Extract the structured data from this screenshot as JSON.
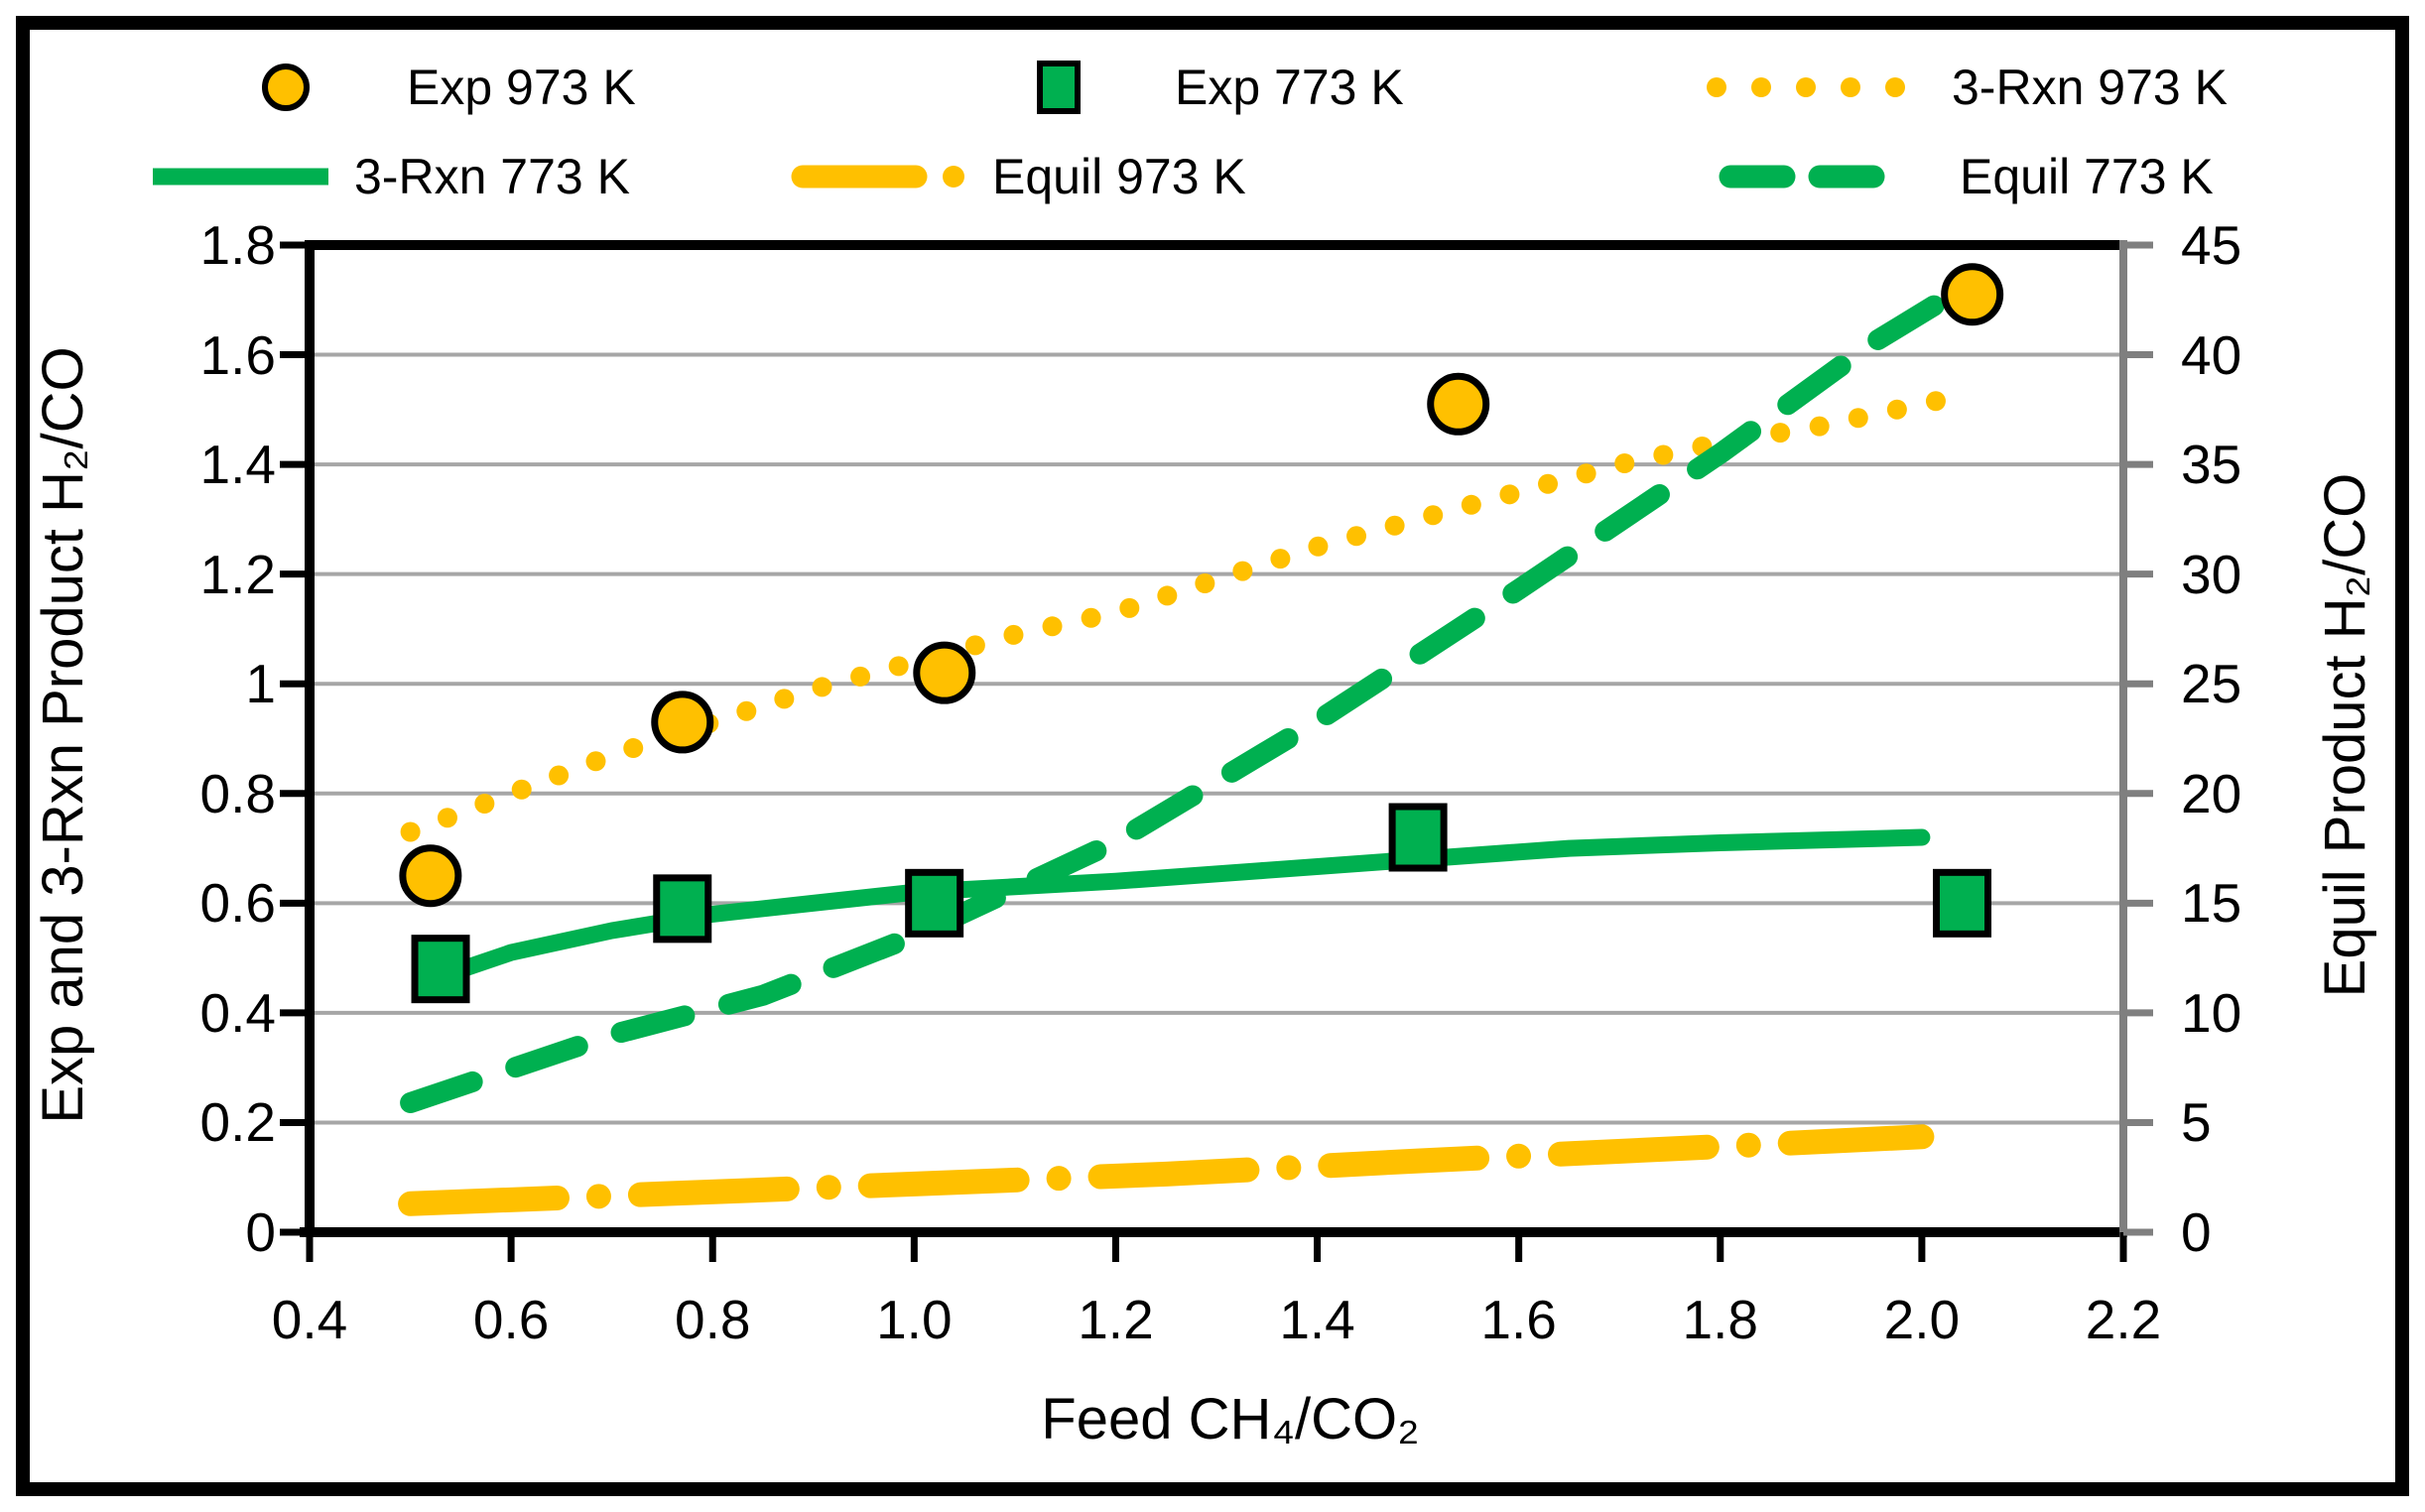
{
  "figure": {
    "background": "#FFFFFF",
    "border_color": "#000000"
  },
  "colors": {
    "gold": "#FFC000",
    "green": "#00B050",
    "gridline": "#A6A6A6",
    "right_axis_line": "#7F7F7F",
    "axis_line": "#000000",
    "text": "#000000"
  },
  "legend": {
    "items": [
      {
        "label": "Exp 973 K",
        "marker": "circle",
        "color": "#FFC000"
      },
      {
        "label": "Exp 773 K",
        "marker": "square",
        "color": "#00B050"
      },
      {
        "label": "3-Rxn 973 K",
        "marker": "dots",
        "color": "#FFC000"
      },
      {
        "label": "3-Rxn 773 K",
        "marker": "solid",
        "color": "#00B050"
      },
      {
        "label": "Equil 973 K",
        "marker": "dashdot",
        "color": "#FFC000"
      },
      {
        "label": "Equil 773 K",
        "marker": "dashes",
        "color": "#00B050"
      }
    ]
  },
  "chart_data": {
    "type": "line+scatter",
    "title": "",
    "x_axis": {
      "label": "Feed CH₄/CO₂",
      "min": 0.4,
      "max": 2.2,
      "tick_labels": [
        "0.4",
        "0.6",
        "0.8",
        "1.0",
        "1.2",
        "1.4",
        "1.6",
        "1.8",
        "2.0",
        "2.2"
      ]
    },
    "y_axis_left": {
      "label": "Exp and 3-Rxn Product H₂/CO",
      "min": 0,
      "max": 1.8,
      "tick_labels": [
        "0",
        "0.2",
        "0.4",
        "0.6",
        "0.8",
        "1",
        "1.2",
        "1.4",
        "1.6",
        "1.8"
      ]
    },
    "y_axis_right": {
      "label": "Equil Product H₂/CO",
      "min": 0,
      "max": 45,
      "tick_labels": [
        "0",
        "5",
        "10",
        "15",
        "20",
        "25",
        "30",
        "35",
        "40",
        "45"
      ]
    },
    "grid": "horizontal",
    "legend_position": "top",
    "series": [
      {
        "name": "Exp 973 K",
        "type": "scatter",
        "marker": "circle",
        "axis": "left",
        "color": "#FFC000",
        "points": [
          [
            0.52,
            0.65
          ],
          [
            0.77,
            0.93
          ],
          [
            1.03,
            1.02
          ],
          [
            1.54,
            1.51
          ],
          [
            2.05,
            1.71
          ]
        ]
      },
      {
        "name": "Exp 773 K",
        "type": "scatter",
        "marker": "square",
        "axis": "left",
        "color": "#00B050",
        "points": [
          [
            0.53,
            0.48
          ],
          [
            0.77,
            0.59
          ],
          [
            1.02,
            0.6
          ],
          [
            1.5,
            0.72
          ],
          [
            2.04,
            0.6
          ]
        ]
      },
      {
        "name": "3-Rxn 973 K",
        "type": "line",
        "style": "dotted",
        "axis": "left",
        "color": "#FFC000",
        "points": [
          [
            0.5,
            0.73
          ],
          [
            0.6,
            0.8
          ],
          [
            0.7,
            0.87
          ],
          [
            0.8,
            0.93
          ],
          [
            0.9,
            0.99
          ],
          [
            1.0,
            1.04
          ],
          [
            1.1,
            1.09
          ],
          [
            1.2,
            1.13
          ],
          [
            1.3,
            1.19
          ],
          [
            1.4,
            1.25
          ],
          [
            1.5,
            1.3
          ],
          [
            1.6,
            1.35
          ],
          [
            1.7,
            1.4
          ],
          [
            1.8,
            1.44
          ],
          [
            1.9,
            1.47
          ],
          [
            2.0,
            1.51
          ],
          [
            2.05,
            1.53
          ]
        ]
      },
      {
        "name": "3-Rxn 773 K",
        "type": "line",
        "style": "solid",
        "axis": "left",
        "color": "#00B050",
        "points": [
          [
            0.52,
            0.46
          ],
          [
            0.6,
            0.51
          ],
          [
            0.7,
            0.55
          ],
          [
            0.8,
            0.58
          ],
          [
            0.9,
            0.6
          ],
          [
            1.0,
            0.62
          ],
          [
            1.1,
            0.63
          ],
          [
            1.2,
            0.64
          ],
          [
            1.35,
            0.66
          ],
          [
            1.5,
            0.68
          ],
          [
            1.65,
            0.7
          ],
          [
            1.8,
            0.71
          ],
          [
            2.0,
            0.72
          ]
        ]
      },
      {
        "name": "Equil 973 K",
        "type": "line",
        "style": "dashdot",
        "axis": "right",
        "color": "#FFC000",
        "points": [
          [
            0.5,
            1.3
          ],
          [
            0.75,
            1.75
          ],
          [
            1.0,
            2.2
          ],
          [
            1.25,
            2.65
          ],
          [
            1.5,
            3.25
          ],
          [
            1.75,
            3.8
          ],
          [
            2.0,
            4.35
          ]
        ]
      },
      {
        "name": "Equil 773 K",
        "type": "line",
        "style": "dashed",
        "axis": "right",
        "color": "#00B050",
        "points": [
          [
            0.5,
            5.9
          ],
          [
            0.7,
            9.0
          ],
          [
            0.85,
            10.8
          ],
          [
            1.0,
            13.5
          ],
          [
            1.2,
            17.8
          ],
          [
            1.4,
            23.3
          ],
          [
            1.6,
            29.3
          ],
          [
            1.8,
            35.5
          ],
          [
            1.95,
            40.5
          ],
          [
            2.05,
            43.3
          ]
        ]
      }
    ]
  }
}
